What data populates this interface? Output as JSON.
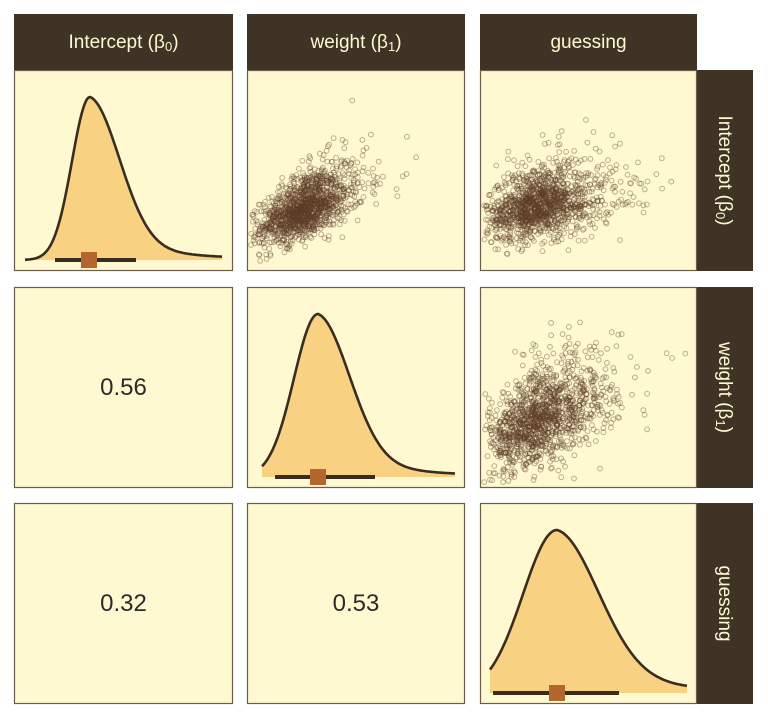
{
  "chart_data": {
    "type": "pairs",
    "variables": [
      "Intercept (β0)",
      "weight (β1)",
      "guessing"
    ],
    "variable_labels": [
      {
        "main": "Intercept (",
        "sub": "β",
        "idx": "0",
        "close": ")"
      },
      {
        "main": "weight (",
        "sub": "β",
        "idx": "1",
        "close": ")"
      },
      {
        "main": "guessing",
        "sub": "",
        "idx": "",
        "close": ""
      }
    ],
    "correlations": [
      {
        "row": 2,
        "col": 1,
        "value": "0.56"
      },
      {
        "row": 3,
        "col": 1,
        "value": "0.32"
      },
      {
        "row": 3,
        "col": 2,
        "value": "0.53"
      }
    ],
    "diagonal": "density with point estimate and interval",
    "upper": "scatter",
    "grid": false,
    "colors": {
      "panel_bg": "#fef9d1",
      "strip_bg": "#3e3324",
      "strip_text": "#fef9d1",
      "density_fill": "#f9d183",
      "density_line": "#3a2d20",
      "point": "#5d3d25",
      "estimate": "#b3672f"
    }
  }
}
